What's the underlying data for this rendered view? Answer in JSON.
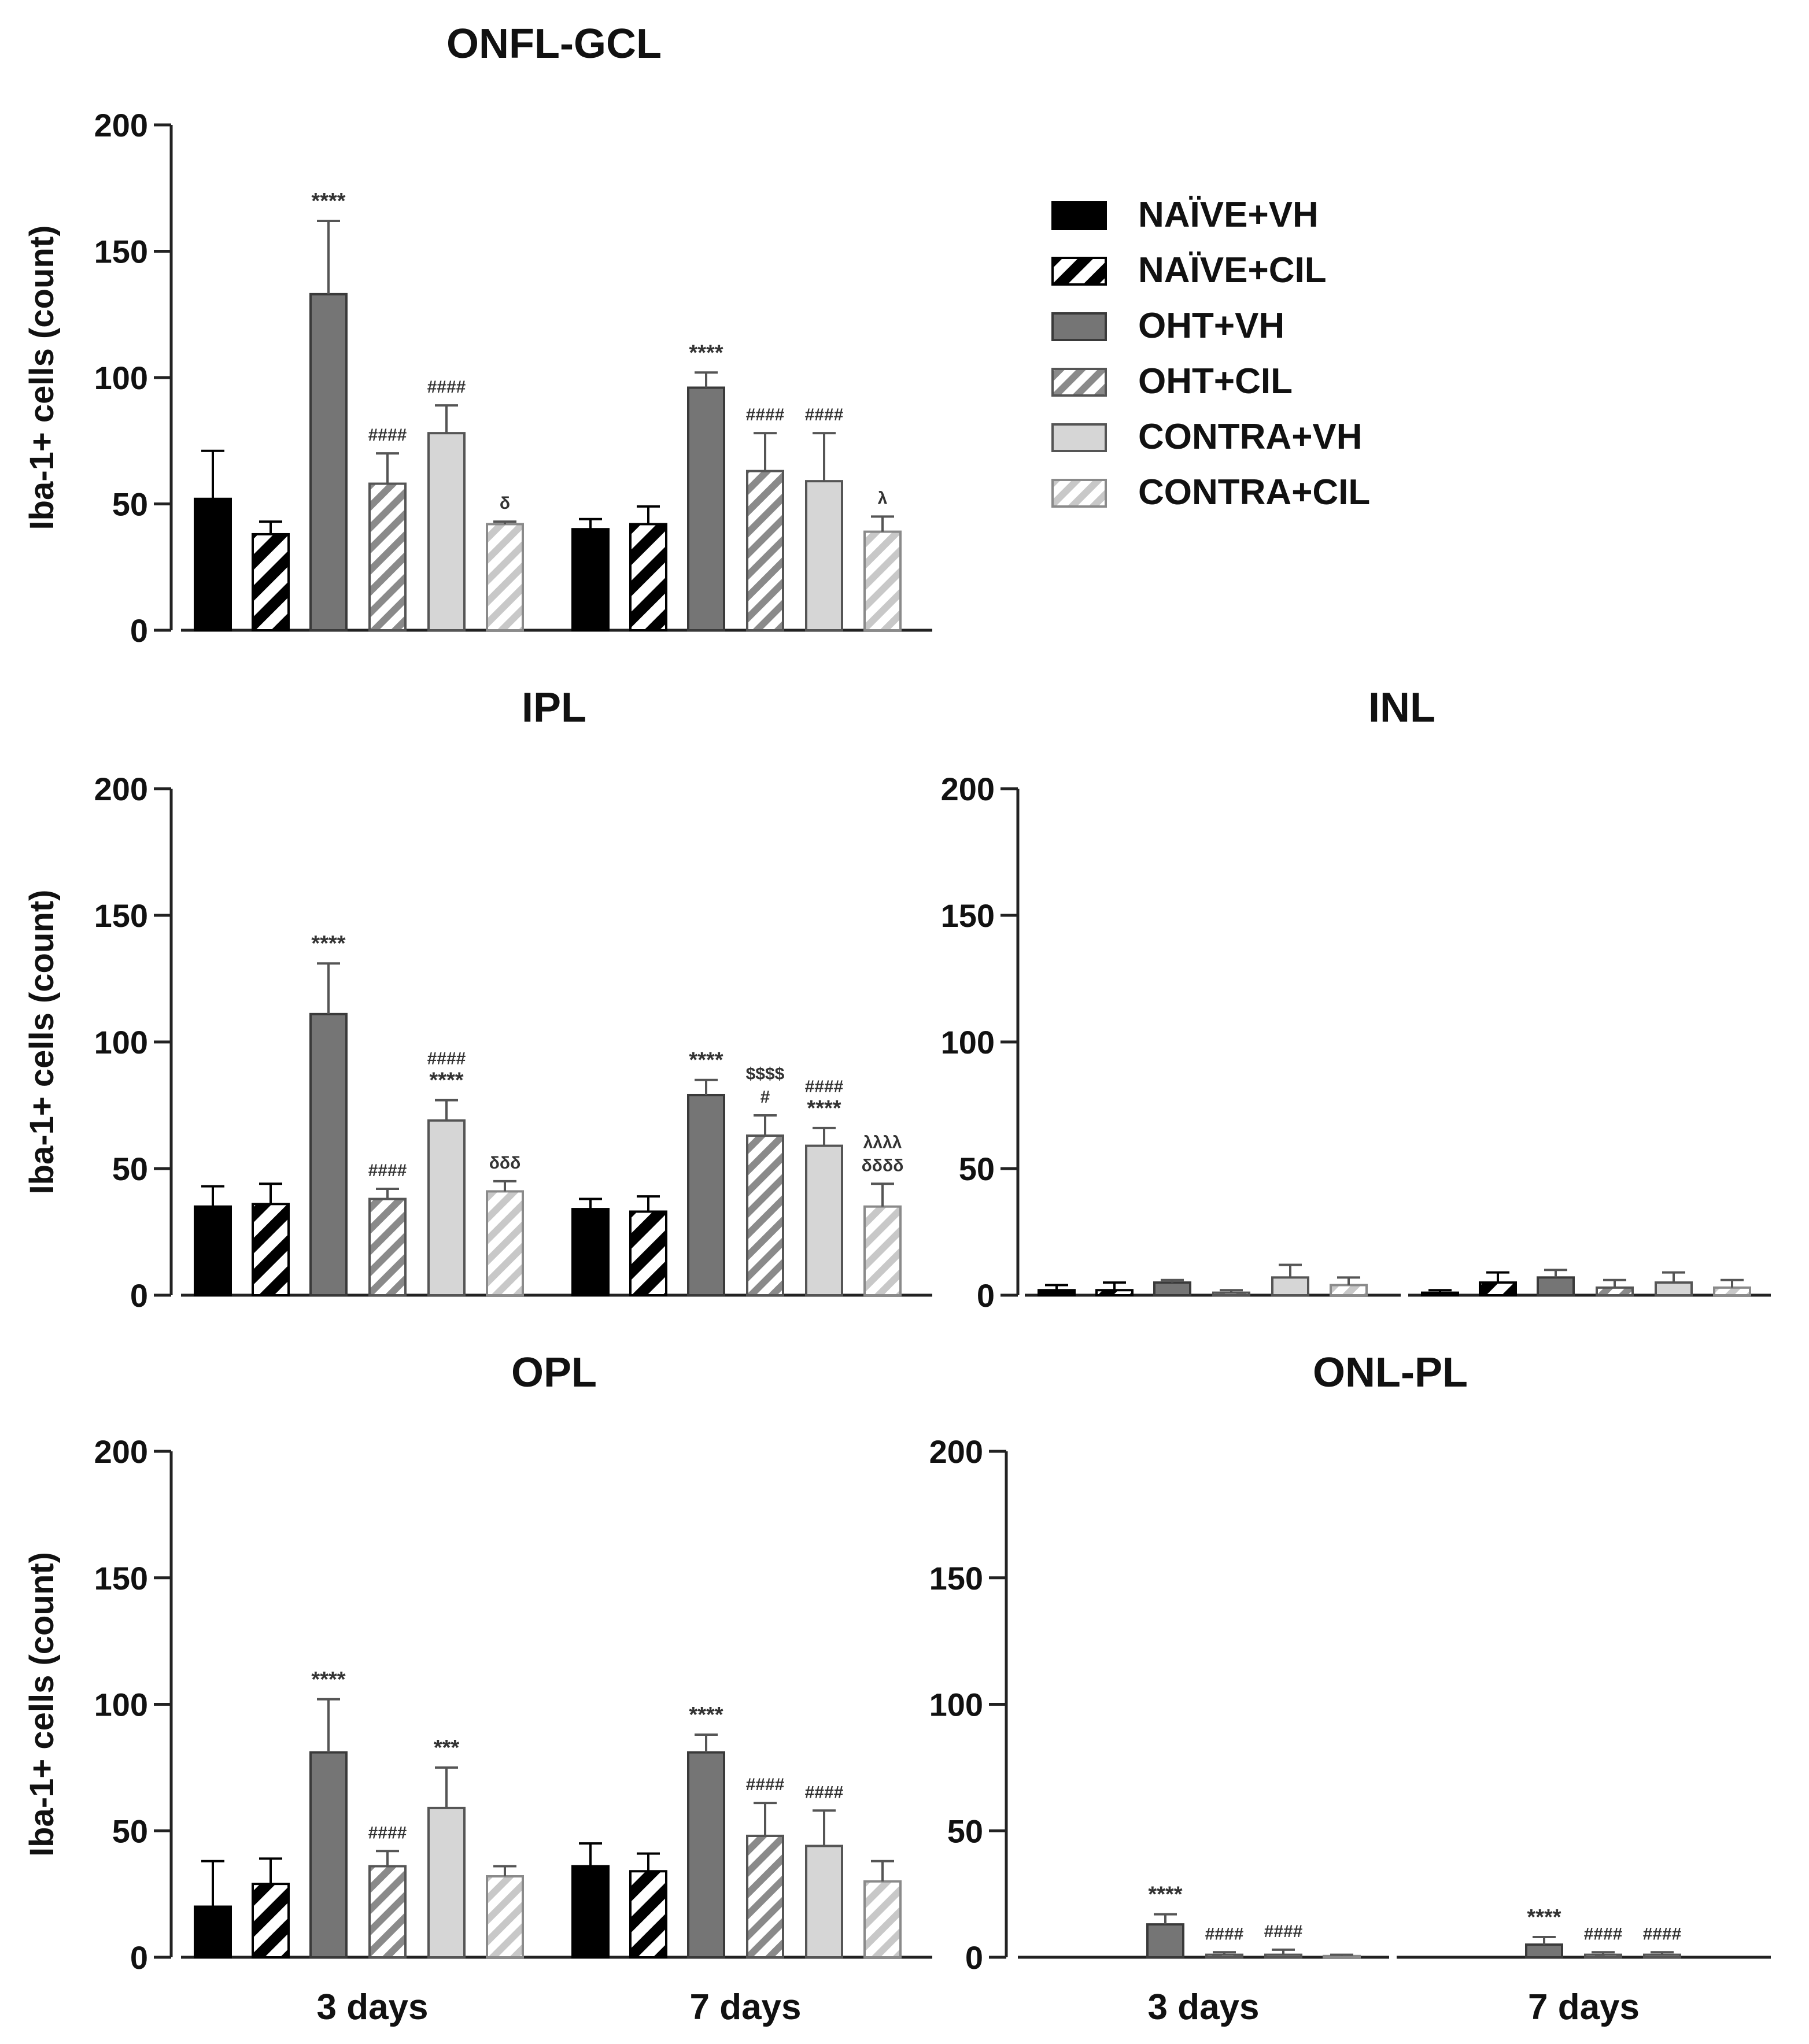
{
  "chart_data": [
    {
      "type": "bar",
      "title": "ONFL-GCL",
      "ylabel": "Iba-1+ cells (count)",
      "ylim": [
        0,
        200
      ],
      "yticks": [
        0,
        50,
        100,
        150,
        200
      ],
      "xlabels": [],
      "groups": [
        {
          "name": "3 days",
          "values": [
            52,
            38,
            133,
            58,
            78,
            42
          ],
          "errors": [
            19,
            5,
            29,
            12,
            11,
            1
          ],
          "annotations": [
            [],
            [],
            [
              "****"
            ],
            [
              "####"
            ],
            [
              "####"
            ],
            [
              "δ"
            ]
          ]
        },
        {
          "name": "7 days",
          "values": [
            40,
            42,
            96,
            63,
            59,
            39
          ],
          "errors": [
            4,
            7,
            6,
            15,
            19,
            6
          ],
          "annotations": [
            [],
            [],
            [
              "****"
            ],
            [
              "####"
            ],
            [
              "####"
            ],
            [
              "λ"
            ]
          ]
        }
      ]
    },
    {
      "type": "bar",
      "title": "IPL",
      "ylabel": "Iba-1+ cells (count)",
      "ylim": [
        0,
        200
      ],
      "yticks": [
        0,
        50,
        100,
        150,
        200
      ],
      "xlabels": [],
      "groups": [
        {
          "name": "3 days",
          "values": [
            35,
            36,
            111,
            38,
            69,
            41
          ],
          "errors": [
            8,
            8,
            20,
            4,
            8,
            4
          ],
          "annotations": [
            [],
            [],
            [
              "****"
            ],
            [
              "####"
            ],
            [
              "####",
              "****"
            ],
            [
              "δδδ"
            ]
          ]
        },
        {
          "name": "7 days",
          "values": [
            34,
            33,
            79,
            63,
            59,
            35
          ],
          "errors": [
            4,
            6,
            6,
            8,
            7,
            9
          ],
          "annotations": [
            [],
            [],
            [
              "****"
            ],
            [
              "$$$$",
              "#"
            ],
            [
              "####",
              "****"
            ],
            [
              "λλλλ",
              "δδδδ"
            ]
          ]
        }
      ]
    },
    {
      "type": "bar",
      "title": "INL",
      "ylabel": "",
      "ylim": [
        0,
        200
      ],
      "yticks": [
        0,
        50,
        100,
        150,
        200
      ],
      "xlabels": [],
      "groups": [
        {
          "name": "3 days",
          "values": [
            2,
            2,
            5,
            1,
            7,
            4
          ],
          "errors": [
            2,
            3,
            1,
            1,
            5,
            3
          ],
          "annotations": [
            [],
            [],
            [],
            [],
            [],
            []
          ]
        },
        {
          "name": "7 days",
          "values": [
            1,
            5,
            7,
            3,
            5,
            3
          ],
          "errors": [
            1,
            4,
            3,
            3,
            4,
            3
          ],
          "annotations": [
            [],
            [],
            [],
            [],
            [],
            []
          ]
        }
      ]
    },
    {
      "type": "bar",
      "title": "OPL",
      "ylabel": "Iba-1+ cells (count)",
      "ylim": [
        0,
        200
      ],
      "yticks": [
        0,
        50,
        100,
        150,
        200
      ],
      "xlabels": [
        "3 days",
        "7 days"
      ],
      "groups": [
        {
          "name": "3 days",
          "values": [
            20,
            29,
            81,
            36,
            59,
            32
          ],
          "errors": [
            18,
            10,
            21,
            6,
            16,
            4
          ],
          "annotations": [
            [],
            [],
            [
              "****"
            ],
            [
              "####"
            ],
            [
              "***"
            ],
            []
          ]
        },
        {
          "name": "7 days",
          "values": [
            36,
            34,
            81,
            48,
            44,
            30
          ],
          "errors": [
            9,
            7,
            7,
            13,
            14,
            8
          ],
          "annotations": [
            [],
            [],
            [
              "****"
            ],
            [
              "####"
            ],
            [
              "####"
            ],
            []
          ]
        }
      ]
    },
    {
      "type": "bar",
      "title": "ONL-PL",
      "ylabel": "",
      "ylim": [
        0,
        200
      ],
      "yticks": [
        0,
        50,
        100,
        150,
        200
      ],
      "xlabels": [
        "3 days",
        "7 days"
      ],
      "groups": [
        {
          "name": "3 days",
          "values": [
            0,
            0,
            13,
            1,
            1,
            0.5
          ],
          "errors": [
            0,
            0,
            4,
            1,
            2,
            0.5
          ],
          "annotations": [
            [],
            [],
            [
              "****"
            ],
            [
              "####"
            ],
            [
              "####"
            ],
            []
          ]
        },
        {
          "name": "7 days",
          "values": [
            0,
            0,
            5,
            1,
            1,
            0
          ],
          "errors": [
            0,
            0,
            3,
            1,
            1,
            0
          ],
          "annotations": [
            [],
            [],
            [
              "****"
            ],
            [
              "####"
            ],
            [
              "####"
            ],
            []
          ]
        }
      ]
    }
  ],
  "legend": {
    "position": "top-right",
    "entries": [
      {
        "label": "NAÏVE+VH",
        "fill": "#000000",
        "pattern": "solid"
      },
      {
        "label": "NAÏVE+CIL",
        "fill": "#000000",
        "pattern": "hatch"
      },
      {
        "label": "OHT+VH",
        "fill": "#757575",
        "pattern": "solid"
      },
      {
        "label": "OHT+CIL",
        "fill": "#8a8a8a",
        "pattern": "hatch"
      },
      {
        "label": "CONTRA+VH",
        "fill": "#d6d6d6",
        "pattern": "solid"
      },
      {
        "label": "CONTRA+CIL",
        "fill": "#c8c8c8",
        "pattern": "hatch"
      }
    ]
  }
}
